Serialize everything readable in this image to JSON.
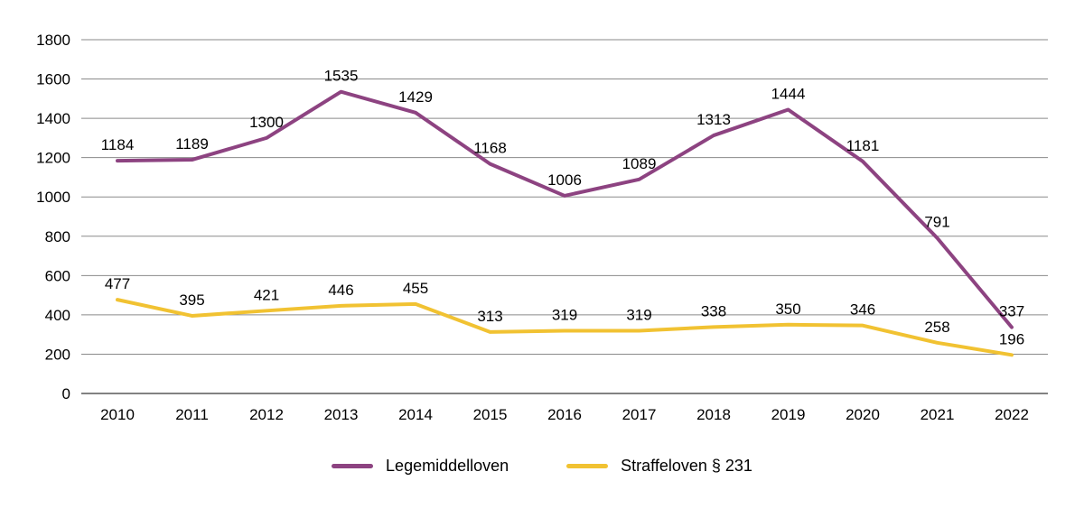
{
  "chart_data": {
    "type": "line",
    "title": "",
    "xlabel": "",
    "ylabel": "",
    "grid": true,
    "legend_position": "bottom",
    "ylim": [
      0,
      1800
    ],
    "yticks": [
      0,
      200,
      400,
      600,
      800,
      1000,
      1200,
      1400,
      1600,
      1800
    ],
    "categories": [
      "2010",
      "2011",
      "2012",
      "2013",
      "2014",
      "2015",
      "2016",
      "2017",
      "2018",
      "2019",
      "2020",
      "2021",
      "2022"
    ],
    "series": [
      {
        "name": "Legemiddelloven",
        "color": "#8d4381",
        "values": [
          1184,
          1189,
          1300,
          1535,
          1429,
          1168,
          1006,
          1089,
          1313,
          1444,
          1181,
          791,
          337
        ]
      },
      {
        "name": "Straffeloven § 231",
        "color": "#f1c232",
        "values": [
          477,
          395,
          421,
          446,
          455,
          313,
          319,
          319,
          338,
          350,
          346,
          258,
          196
        ]
      }
    ],
    "colors": {
      "gridline": "#8a8a8a",
      "axis": "#595959",
      "label_text": "#000000"
    }
  }
}
